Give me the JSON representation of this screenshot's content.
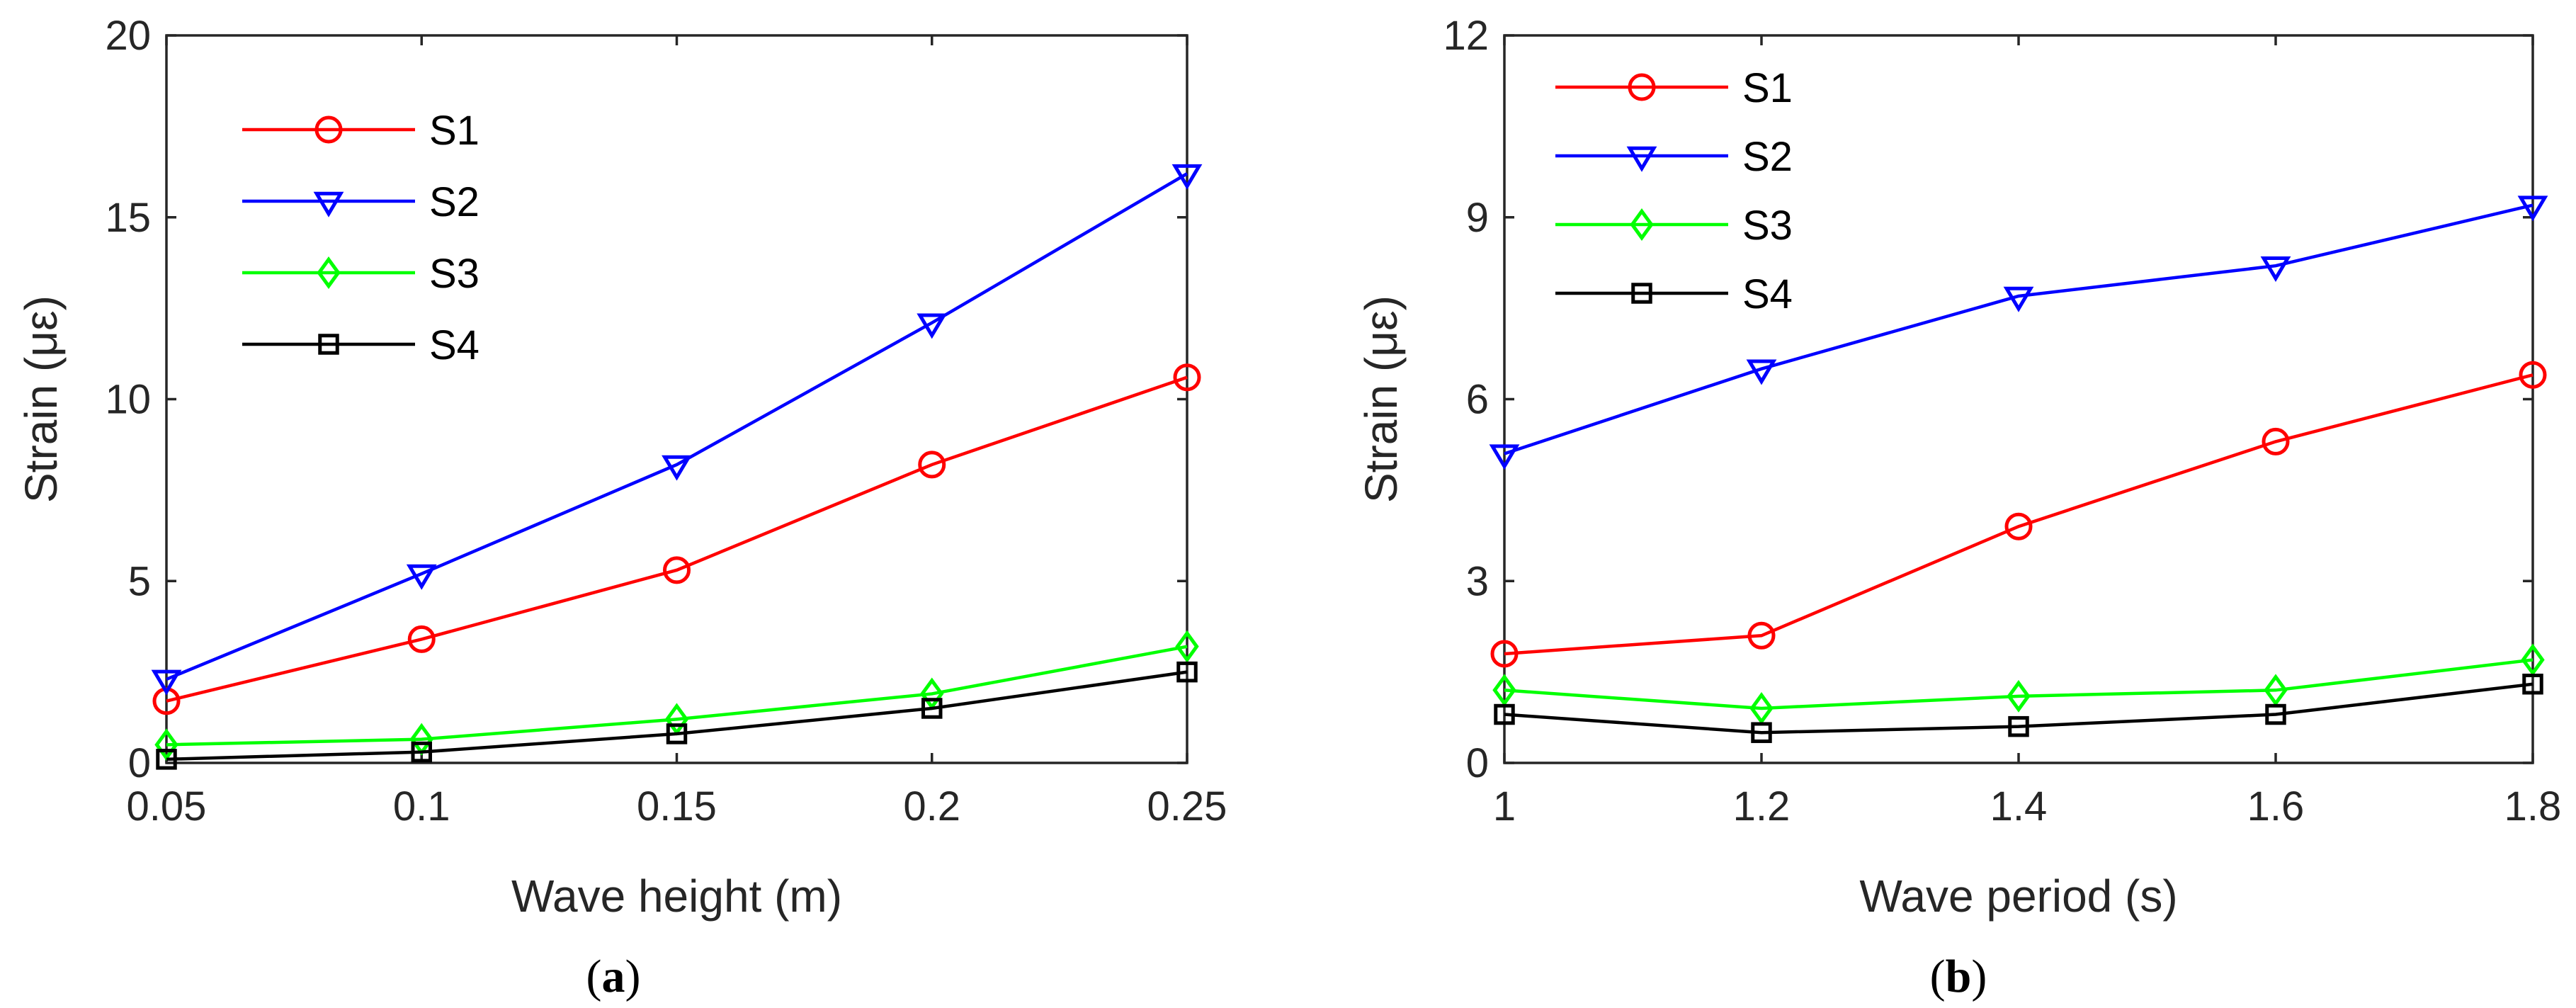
{
  "chart_data": [
    {
      "type": "line",
      "panel_label": "a",
      "title": "",
      "xlabel": "Wave height (m)",
      "ylabel": "Strain (με)",
      "x": [
        0.05,
        0.1,
        0.15,
        0.2,
        0.25
      ],
      "x_tick_labels": [
        "0.05",
        "0.1",
        "0.15",
        "0.2",
        "0.25"
      ],
      "xlim": [
        0.05,
        0.25
      ],
      "ylim": [
        0,
        20
      ],
      "y_ticks": [
        0,
        5,
        10,
        15,
        20
      ],
      "y_tick_labels": [
        "0",
        "5",
        "10",
        "15",
        "20"
      ],
      "grid": false,
      "legend_position": "top-left",
      "series": [
        {
          "name": "S1",
          "color": "#ff0000",
          "marker": "circle",
          "values": [
            1.7,
            3.4,
            5.3,
            8.2,
            10.6
          ]
        },
        {
          "name": "S2",
          "color": "#0000ff",
          "marker": "triangle-down",
          "values": [
            2.3,
            5.2,
            8.2,
            12.1,
            16.2
          ]
        },
        {
          "name": "S3",
          "color": "#00ff00",
          "marker": "diamond",
          "values": [
            0.5,
            0.65,
            1.2,
            1.9,
            3.2
          ]
        },
        {
          "name": "S4",
          "color": "#000000",
          "marker": "square",
          "values": [
            0.1,
            0.3,
            0.8,
            1.5,
            2.5
          ]
        }
      ]
    },
    {
      "type": "line",
      "panel_label": "b",
      "title": "",
      "xlabel": "Wave period (s)",
      "ylabel": "Strain (με)",
      "x": [
        1.0,
        1.2,
        1.4,
        1.6,
        1.8
      ],
      "x_tick_labels": [
        "1",
        "1.2",
        "1.4",
        "1.6",
        "1.8"
      ],
      "xlim": [
        1.0,
        1.8
      ],
      "ylim": [
        0,
        12
      ],
      "y_ticks": [
        0,
        3,
        6,
        9,
        12
      ],
      "y_tick_labels": [
        "0",
        "3",
        "6",
        "9",
        "12"
      ],
      "grid": false,
      "legend_position": "top-left",
      "series": [
        {
          "name": "S1",
          "color": "#ff0000",
          "marker": "circle",
          "values": [
            1.8,
            2.1,
            3.9,
            5.3,
            6.4
          ]
        },
        {
          "name": "S2",
          "color": "#0000ff",
          "marker": "triangle-down",
          "values": [
            5.1,
            6.5,
            7.7,
            8.2,
            9.2
          ]
        },
        {
          "name": "S3",
          "color": "#00ff00",
          "marker": "diamond",
          "values": [
            1.2,
            0.9,
            1.1,
            1.2,
            1.7
          ]
        },
        {
          "name": "S4",
          "color": "#000000",
          "marker": "square",
          "values": [
            0.8,
            0.5,
            0.6,
            0.8,
            1.3
          ]
        }
      ]
    }
  ]
}
